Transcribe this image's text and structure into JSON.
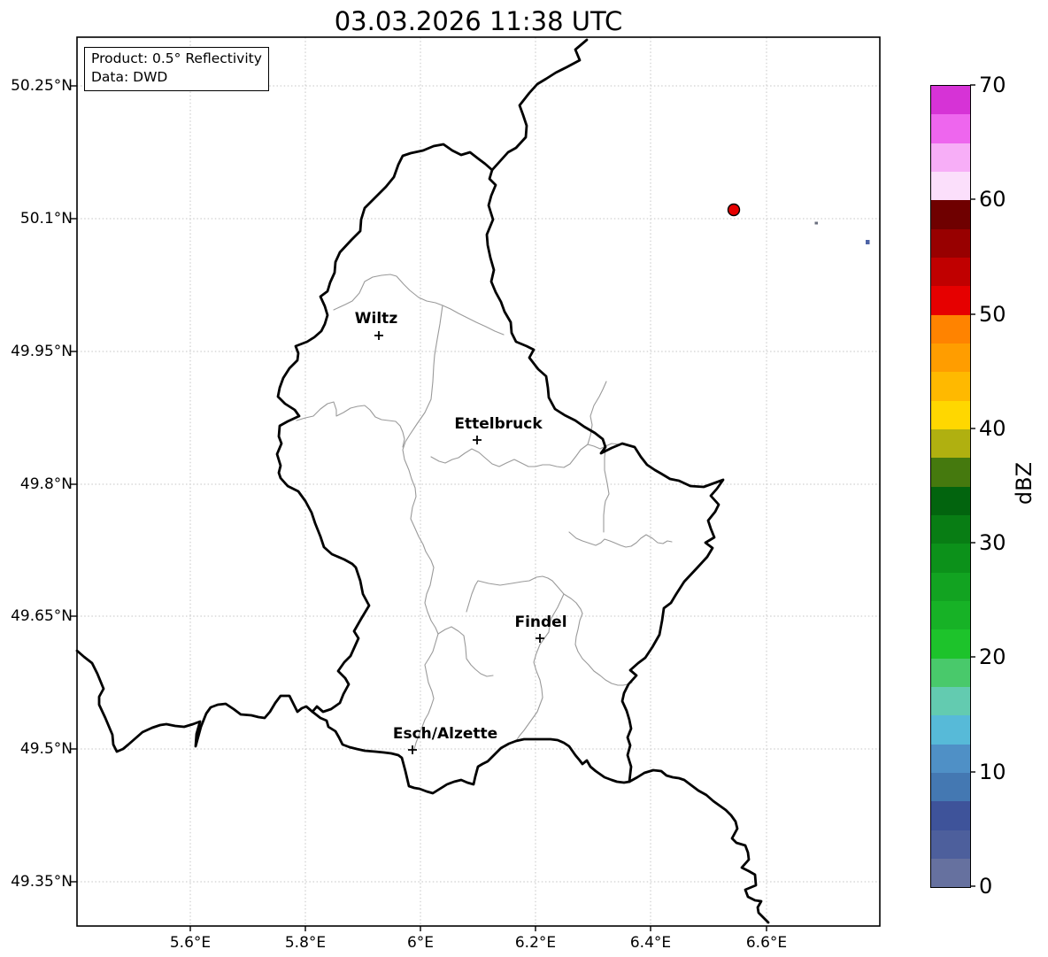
{
  "title": "03.03.2026 11:38 UTC",
  "info_box": {
    "line1": "Product: 0.5° Reflectivity",
    "line2": "Data: DWD"
  },
  "axes": {
    "lat_ticks": [
      "50.25°N",
      "50.1°N",
      "49.95°N",
      "49.8°N",
      "49.65°N",
      "49.5°N",
      "49.35°N"
    ],
    "lon_ticks": [
      "5.6°E",
      "5.8°E",
      "6°E",
      "6.2°E",
      "6.4°E",
      "6.6°E"
    ]
  },
  "cities": [
    {
      "label": "Wiltz"
    },
    {
      "label": "Ettelbruck"
    },
    {
      "label": "Findel"
    },
    {
      "label": "Esch/Alzette"
    }
  ],
  "radar": {
    "site_dot_color": "#e60000",
    "echo_pixel_colors": [
      "#6a6f7e",
      "#4c63a5"
    ]
  },
  "colorbar": {
    "label": "dBZ",
    "ticks": [
      "70",
      "60",
      "50",
      "40",
      "30",
      "20",
      "10",
      "0"
    ],
    "min": 0,
    "max": 70,
    "segment_step_dbz": 2.5,
    "segment_colors_bottom_to_top": [
      "#66719f",
      "#4d5f9c",
      "#3e539a",
      "#4478b2",
      "#4f90c6",
      "#57bad8",
      "#63cbb0",
      "#49c96b",
      "#1dc32b",
      "#17b226",
      "#12a321",
      "#0c911a",
      "#087d14",
      "#02640e",
      "#45790e",
      "#b0b010",
      "#ffd700",
      "#ffb900",
      "#ff9d00",
      "#ff8300",
      "#e60000",
      "#c00000",
      "#980000",
      "#6f0000",
      "#fbdffb",
      "#f7aef7",
      "#ee66ee",
      "#d633d6"
    ]
  }
}
